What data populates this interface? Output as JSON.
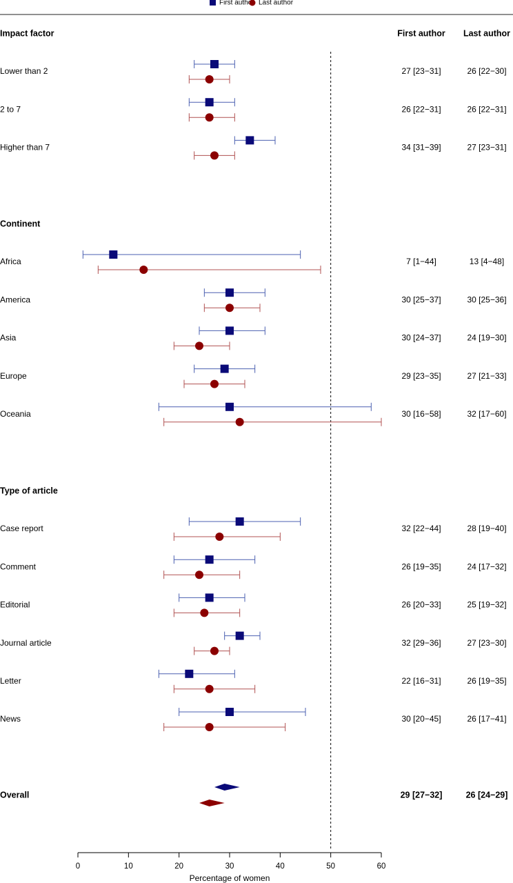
{
  "chart_data": {
    "type": "forest",
    "legend": {
      "first": "First author",
      "last": "Last author"
    },
    "column_headers": {
      "first": "First author",
      "last": "Last author"
    },
    "xlabel": "Percentage of women",
    "xlim": [
      0,
      60
    ],
    "xticks": [
      0,
      10,
      20,
      30,
      40,
      50,
      60
    ],
    "reference_line": 50,
    "colors": {
      "first": "#0a0a78",
      "last": "#8b0000",
      "first_line": "#4a5fb0",
      "last_line": "#b05050"
    },
    "sections": [
      {
        "title": "Impact factor",
        "rows": [
          {
            "label": "Lower than 2",
            "first": {
              "est": 27,
              "lo": 23,
              "hi": 31,
              "text": "27 [23−31]"
            },
            "last": {
              "est": 26,
              "lo": 22,
              "hi": 30,
              "text": "26 [22−30]"
            }
          },
          {
            "label": "2 to 7",
            "first": {
              "est": 26,
              "lo": 22,
              "hi": 31,
              "text": "26 [22−31]"
            },
            "last": {
              "est": 26,
              "lo": 22,
              "hi": 31,
              "text": "26 [22−31]"
            }
          },
          {
            "label": "Higher than 7",
            "first": {
              "est": 34,
              "lo": 31,
              "hi": 39,
              "text": "34 [31−39]"
            },
            "last": {
              "est": 27,
              "lo": 23,
              "hi": 31,
              "text": "27 [23−31]"
            }
          }
        ]
      },
      {
        "title": "Continent",
        "rows": [
          {
            "label": "Africa",
            "first": {
              "est": 7,
              "lo": 1,
              "hi": 44,
              "text": "7 [1−44]"
            },
            "last": {
              "est": 13,
              "lo": 4,
              "hi": 48,
              "text": "13 [4−48]"
            }
          },
          {
            "label": "America",
            "first": {
              "est": 30,
              "lo": 25,
              "hi": 37,
              "text": "30 [25−37]"
            },
            "last": {
              "est": 30,
              "lo": 25,
              "hi": 36,
              "text": "30 [25−36]"
            }
          },
          {
            "label": "Asia",
            "first": {
              "est": 30,
              "lo": 24,
              "hi": 37,
              "text": "30 [24−37]"
            },
            "last": {
              "est": 24,
              "lo": 19,
              "hi": 30,
              "text": "24 [19−30]"
            }
          },
          {
            "label": "Europe",
            "first": {
              "est": 29,
              "lo": 23,
              "hi": 35,
              "text": "29 [23−35]"
            },
            "last": {
              "est": 27,
              "lo": 21,
              "hi": 33,
              "text": "27 [21−33]"
            }
          },
          {
            "label": "Oceania",
            "first": {
              "est": 30,
              "lo": 16,
              "hi": 58,
              "text": "30 [16−58]"
            },
            "last": {
              "est": 32,
              "lo": 17,
              "hi": 60,
              "text": "32 [17−60]"
            }
          }
        ]
      },
      {
        "title": "Type of article",
        "rows": [
          {
            "label": "Case report",
            "first": {
              "est": 32,
              "lo": 22,
              "hi": 44,
              "text": "32 [22−44]"
            },
            "last": {
              "est": 28,
              "lo": 19,
              "hi": 40,
              "text": "28 [19−40]"
            }
          },
          {
            "label": "Comment",
            "first": {
              "est": 26,
              "lo": 19,
              "hi": 35,
              "text": "26 [19−35]"
            },
            "last": {
              "est": 24,
              "lo": 17,
              "hi": 32,
              "text": "24 [17−32]"
            }
          },
          {
            "label": "Editorial",
            "first": {
              "est": 26,
              "lo": 20,
              "hi": 33,
              "text": "26 [20−33]"
            },
            "last": {
              "est": 25,
              "lo": 19,
              "hi": 32,
              "text": "25 [19−32]"
            }
          },
          {
            "label": "Journal article",
            "first": {
              "est": 32,
              "lo": 29,
              "hi": 36,
              "text": "32 [29−36]"
            },
            "last": {
              "est": 27,
              "lo": 23,
              "hi": 30,
              "text": "27 [23−30]"
            }
          },
          {
            "label": "Letter",
            "first": {
              "est": 22,
              "lo": 16,
              "hi": 31,
              "text": "22 [16−31]"
            },
            "last": {
              "est": 26,
              "lo": 19,
              "hi": 35,
              "text": "26 [19−35]"
            }
          },
          {
            "label": "News",
            "first": {
              "est": 30,
              "lo": 20,
              "hi": 45,
              "text": "30 [20−45]"
            },
            "last": {
              "est": 26,
              "lo": 17,
              "hi": 41,
              "text": "26 [17−41]"
            }
          }
        ]
      }
    ],
    "overall": {
      "label": "Overall",
      "first": {
        "est": 29,
        "lo": 27,
        "hi": 32,
        "text": "29 [27−32]"
      },
      "last": {
        "est": 26,
        "lo": 24,
        "hi": 29,
        "text": "26 [24−29]"
      }
    }
  }
}
